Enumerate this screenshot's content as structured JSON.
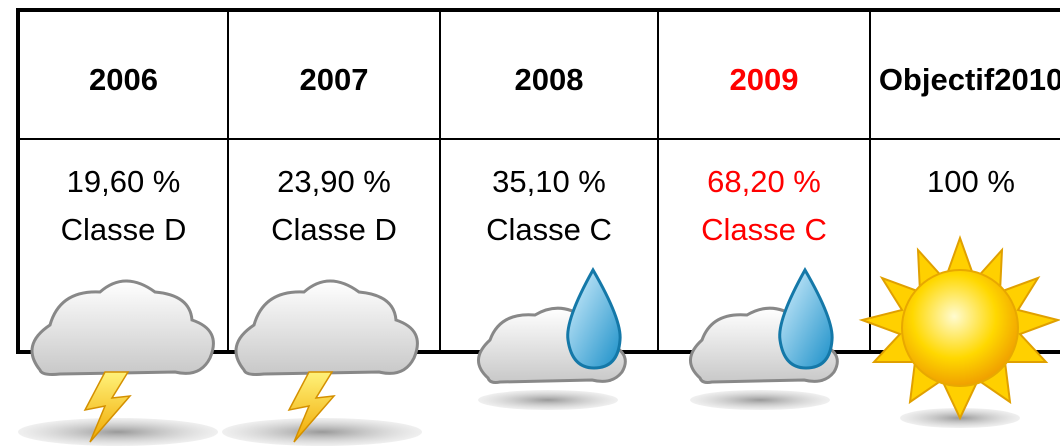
{
  "table": {
    "columns": [
      {
        "year": "2006",
        "rate": "19,60 %",
        "class": "Classe D"
      },
      {
        "year": "2007",
        "rate": "23,90 %",
        "class": "Classe D"
      },
      {
        "year": "2008",
        "rate": "35,10 %",
        "class": "Classe C"
      },
      {
        "year": "2009",
        "rate": "68,20 %",
        "class": "Classe C"
      },
      {
        "year": [
          "Objectif",
          "2010"
        ],
        "rate": "100 %"
      }
    ]
  }
}
